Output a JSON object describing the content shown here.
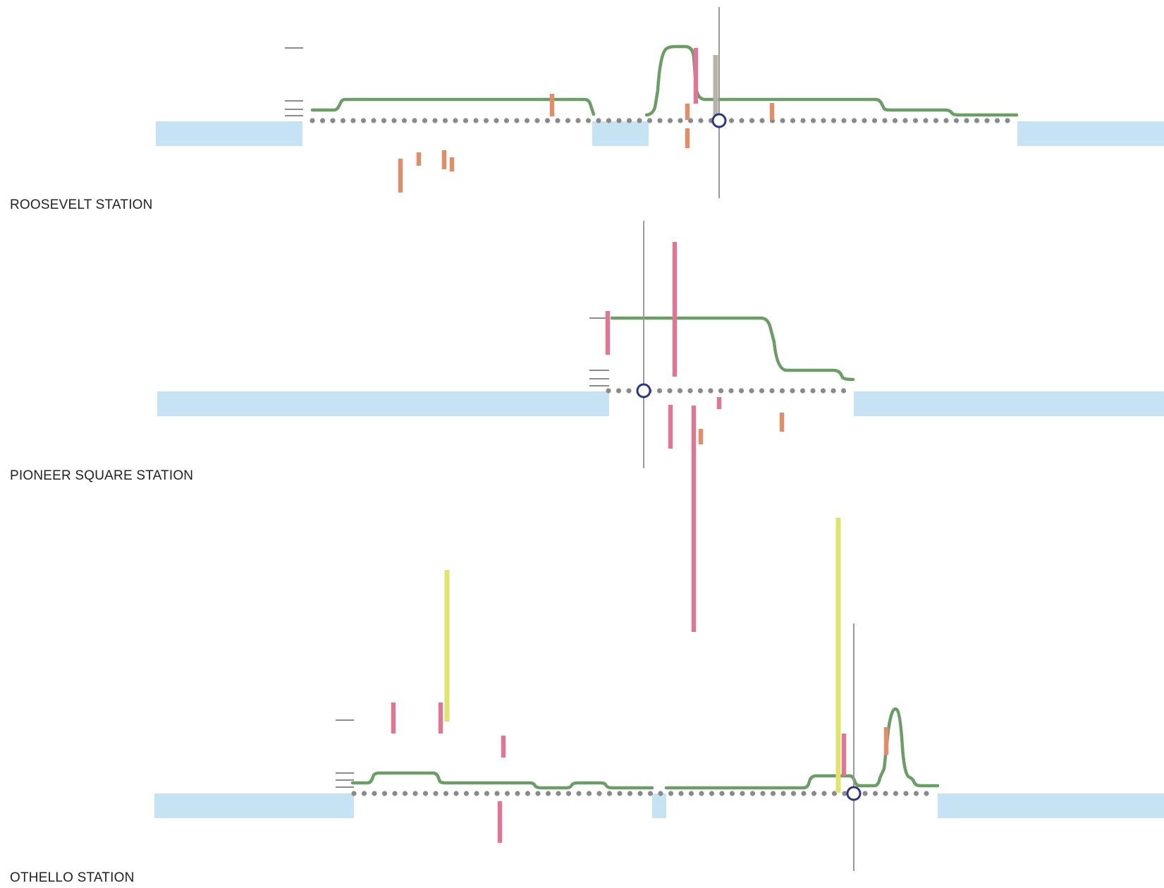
{
  "colors": {
    "platform": "#c5e3f3",
    "track_dots": "#8a8a8a",
    "profile_line": "#6a9e64",
    "marker_orange": "#e08d68",
    "marker_pink": "#e07595",
    "marker_yellow": "#dfe46c",
    "marker_gray": "#b7b3a6",
    "cursor_line": "#999999",
    "cursor_ring": "#2e3585",
    "tick": "#666666",
    "label_text": "#222222"
  },
  "stations": [
    {
      "id": "roosevelt",
      "label": "ROOSEVELT STATION"
    },
    {
      "id": "pioneer-square",
      "label": "PIONEER SQUARE STATION"
    },
    {
      "id": "othello",
      "label": "OTHELLO STATION"
    }
  ]
}
